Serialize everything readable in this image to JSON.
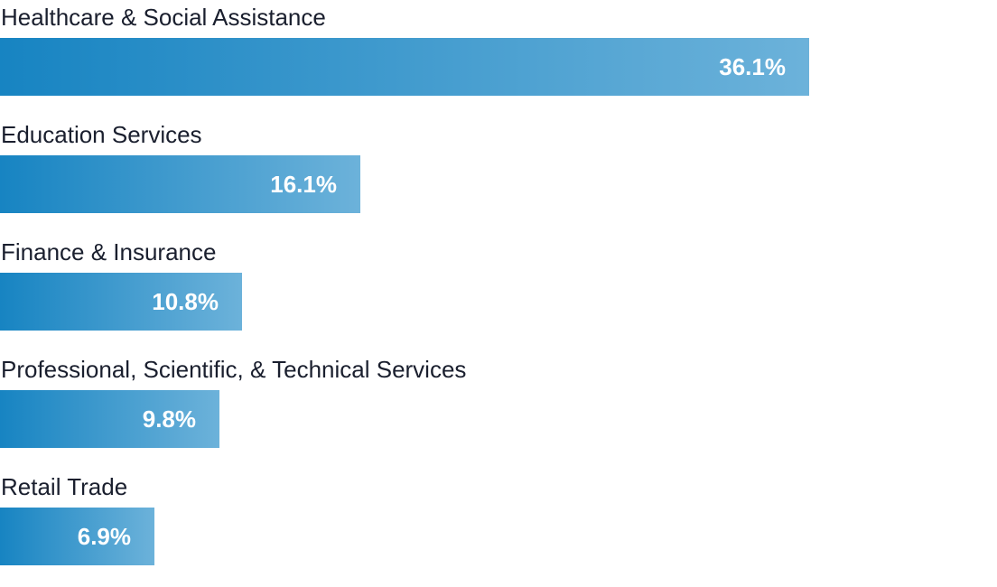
{
  "chart_data": {
    "type": "bar",
    "orientation": "horizontal",
    "categories": [
      "Healthcare & Social Assistance",
      "Education Services",
      "Finance & Insurance",
      "Professional, Scientific, & Technical Services",
      "Retail Trade"
    ],
    "values": [
      36.1,
      16.1,
      10.8,
      9.8,
      6.9
    ],
    "value_labels": [
      "36.1%",
      "16.1%",
      "10.8%",
      "9.8%",
      "6.9%"
    ],
    "unit": "%",
    "xlim": [
      0,
      44.5
    ],
    "grid": false,
    "legend": "none",
    "bar_color_start": "#1784c2",
    "bar_color_end": "#6cb2da",
    "label_color": "#1a1f2e",
    "value_label_color": "#ffffff"
  }
}
